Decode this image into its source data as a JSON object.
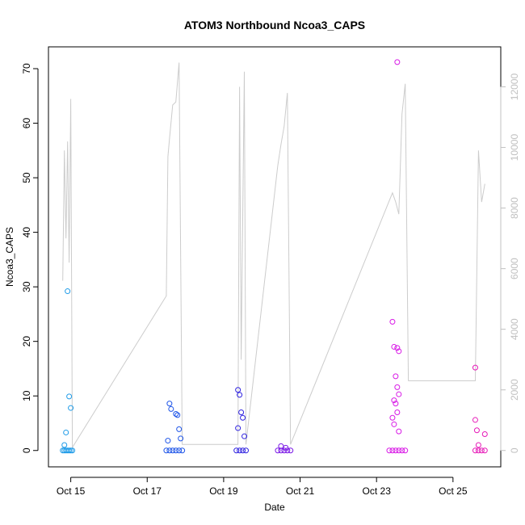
{
  "chart_data": {
    "type": "scatter",
    "title": "ATOM3 Northbound Ncoa3_CAPS",
    "xlabel": "Date",
    "ylabel": "Ncoa3_CAPS",
    "x_ticks": [
      "Oct 15",
      "Oct 17",
      "Oct 19",
      "Oct 21",
      "Oct 23",
      "Oct 25"
    ],
    "x_range": [
      "Oct 14 10:00",
      "Oct 26 06:00"
    ],
    "ylim": [
      -3,
      74
    ],
    "y_ticks": [
      0,
      10,
      20,
      30,
      40,
      50,
      60,
      70
    ],
    "y2lim": [
      -540,
      13320
    ],
    "y2_ticks": [
      0,
      2000,
      4000,
      6000,
      8000,
      10000,
      12000
    ],
    "grid": false,
    "legend": "none",
    "colors": {
      "points": [
        "#1e9be8",
        "#1e55e8",
        "#2f22e0",
        "#7a18e6",
        "#d81ae6",
        "#e61ab8"
      ],
      "line": "#cccccc",
      "right_axis": "#c0c0c0"
    },
    "series": [
      {
        "axis": "left",
        "style": "points",
        "color": "#1e9be8",
        "x": [
          "Oct 14 19:00",
          "Oct 14 20:00",
          "Oct 14 21:00",
          "Oct 14 22:00",
          "Oct 14 23:00",
          "Oct 15 00:00",
          "Oct 15 01:00",
          "Oct 14 21:00",
          "Oct 14 22:00",
          "Oct 14 23:00",
          "Oct 14 20:00",
          "Oct 15 00:00"
        ],
        "y": [
          0,
          0,
          0,
          0,
          0,
          0,
          0,
          3.3,
          29.2,
          9.9,
          1.0,
          7.8
        ]
      },
      {
        "axis": "left",
        "style": "points",
        "color": "#1e55e8",
        "x": [
          "Oct 17 12:00",
          "Oct 17 14:00",
          "Oct 17 16:00",
          "Oct 17 18:00",
          "Oct 17 20:00",
          "Oct 17 22:00",
          "Oct 17 14:00",
          "Oct 17 15:00",
          "Oct 17 18:00",
          "Oct 17 19:00",
          "Oct 17 20:00",
          "Oct 17 21:00",
          "Oct 17 13:00"
        ],
        "y": [
          0,
          0,
          0,
          0,
          0,
          0,
          8.6,
          7.6,
          6.7,
          6.5,
          3.9,
          2.2,
          1.8
        ]
      },
      {
        "axis": "left",
        "style": "points",
        "color": "#2f22e0",
        "x": [
          "Oct 19 08:00",
          "Oct 19 10:00",
          "Oct 19 12:00",
          "Oct 19 14:00",
          "Oct 19 09:00",
          "Oct 19 10:00",
          "Oct 19 11:00",
          "Oct 19 12:00",
          "Oct 19 09:00",
          "Oct 19 13:00"
        ],
        "y": [
          0,
          0,
          0,
          0,
          11.1,
          10.2,
          7.0,
          6.0,
          4.1,
          2.6
        ]
      },
      {
        "axis": "left",
        "style": "points",
        "color": "#7a18e6",
        "x": [
          "Oct 20 10:00",
          "Oct 20 12:00",
          "Oct 20 14:00",
          "Oct 20 16:00",
          "Oct 20 18:00",
          "Oct 20 12:00",
          "Oct 20 15:00"
        ],
        "y": [
          0,
          0,
          0,
          0,
          0,
          0.8,
          0.5
        ]
      },
      {
        "axis": "left",
        "style": "points",
        "color": "#d81ae6",
        "x": [
          "Oct 23 08:00",
          "Oct 23 10:00",
          "Oct 23 12:00",
          "Oct 23 14:00",
          "Oct 23 16:00",
          "Oct 23 18:00",
          "Oct 23 13:00",
          "Oct 23 10:00",
          "Oct 23 11:00",
          "Oct 23 13:00",
          "Oct 23 14:00",
          "Oct 23 12:00",
          "Oct 23 13:00",
          "Oct 23 14:00",
          "Oct 23 11:00",
          "Oct 23 12:00",
          "Oct 23 13:00",
          "Oct 23 10:00",
          "Oct 23 11:00",
          "Oct 23 14:00"
        ],
        "y": [
          0,
          0,
          0,
          0,
          0,
          0,
          71.2,
          23.6,
          19.0,
          18.8,
          18.2,
          13.6,
          11.6,
          10.3,
          9.2,
          8.6,
          7.0,
          6.0,
          4.8,
          3.5
        ]
      },
      {
        "axis": "left",
        "style": "points",
        "color": "#e61ab8",
        "x": [
          "Oct 25 14:00",
          "Oct 25 16:00",
          "Oct 25 18:00",
          "Oct 25 20:00",
          "Oct 25 14:00",
          "Oct 25 14:00",
          "Oct 25 15:00",
          "Oct 25 20:00",
          "Oct 25 16:00"
        ],
        "y": [
          0,
          0,
          0,
          0,
          15.2,
          5.6,
          3.7,
          3.0,
          1.0
        ]
      },
      {
        "axis": "right",
        "style": "line",
        "color": "#cccccc",
        "x": [
          "Oct 14 19:00",
          "Oct 14 20:00",
          "Oct 14 21:00",
          "Oct 14 22:00",
          "Oct 14 23:00",
          "Oct 15 00:00",
          "Oct 15 01:00",
          "Oct 17 12:00",
          "Oct 17 13:00",
          "Oct 17 14:00",
          "Oct 17 16:00",
          "Oct 17 18:00",
          "Oct 17 20:00",
          "Oct 17 22:00",
          "Oct 19 09:00",
          "Oct 19 10:00",
          "Oct 19 11:00",
          "Oct 19 13:00",
          "Oct 19 14:00",
          "Oct 20 10:00",
          "Oct 20 12:00",
          "Oct 20 14:00",
          "Oct 20 16:00",
          "Oct 20 18:00",
          "Oct 23 10:00",
          "Oct 23 12:00",
          "Oct 23 14:00",
          "Oct 23 16:00",
          "Oct 23 18:00",
          "Oct 23 20:00",
          "Oct 25 14:00",
          "Oct 25 16:00",
          "Oct 25 18:00",
          "Oct 25 20:00"
        ],
        "y": [
          5600,
          9900,
          7000,
          10200,
          6200,
          11600,
          100,
          5100,
          9700,
          10300,
          11400,
          11500,
          12800,
          200,
          200,
          12000,
          3000,
          12500,
          200,
          9400,
          10100,
          10700,
          11800,
          200,
          8500,
          8200,
          7800,
          11100,
          12100,
          2300,
          2300,
          9900,
          8200,
          8800
        ]
      }
    ]
  }
}
